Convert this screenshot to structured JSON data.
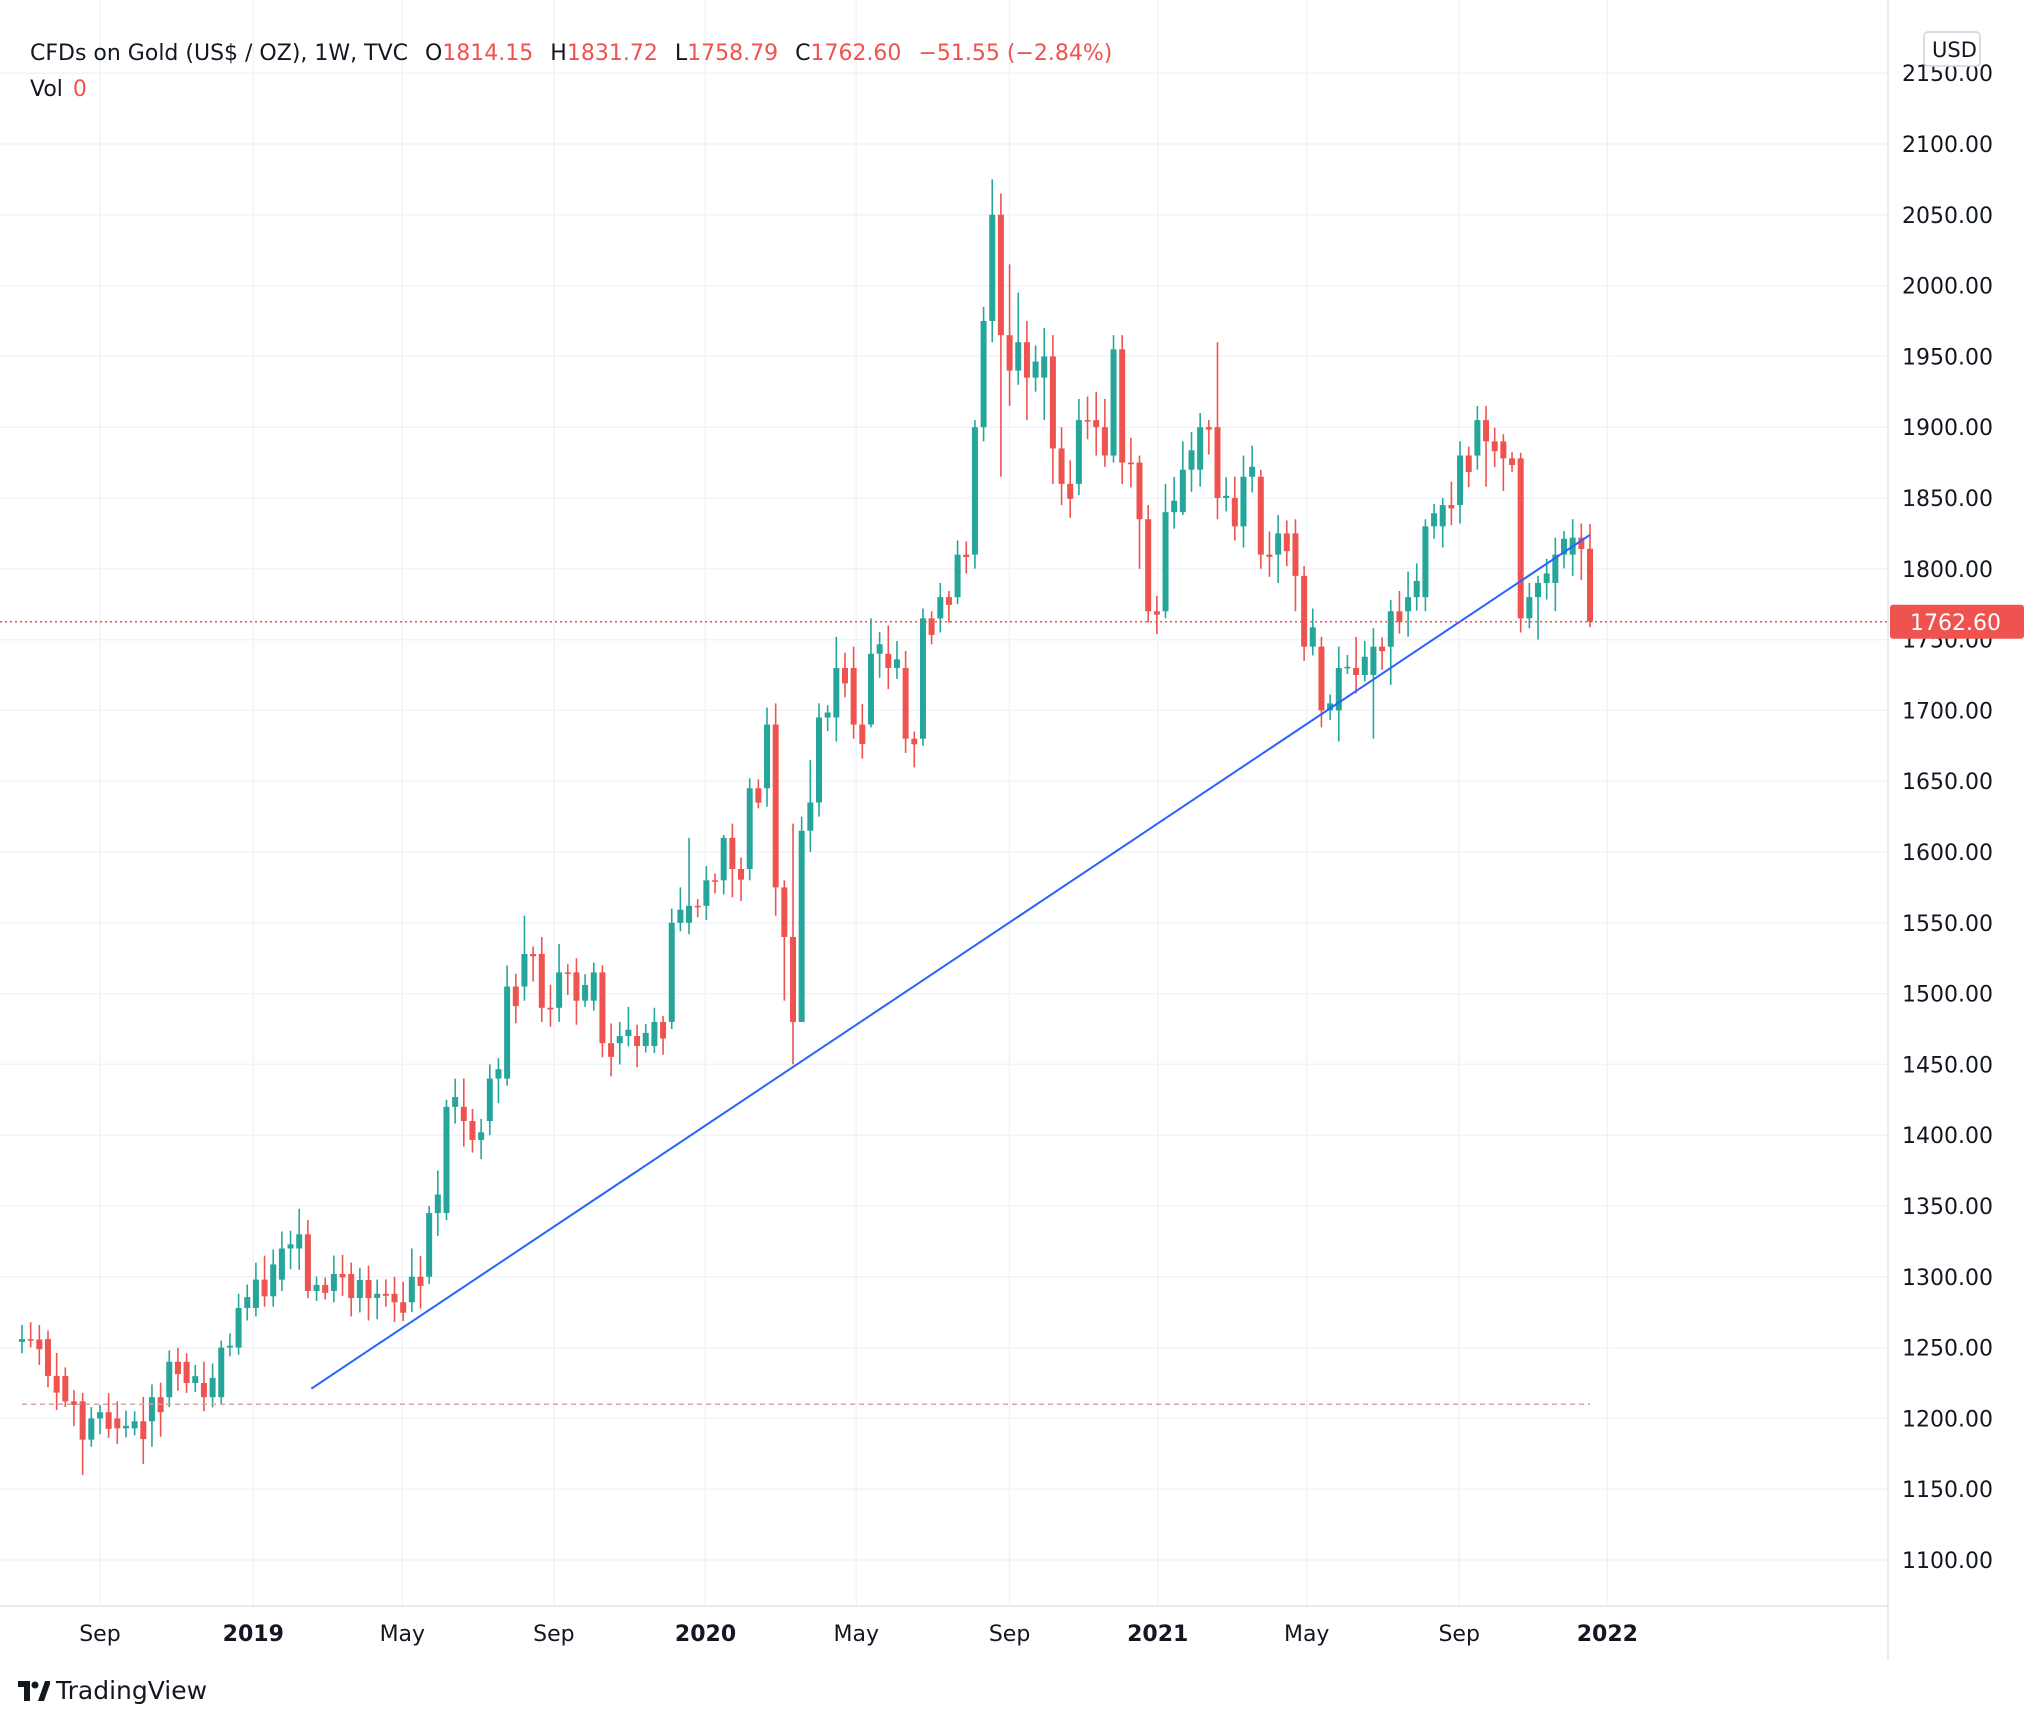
{
  "legend": {
    "symbol": "CFDs on Gold (US$ / OZ), 1W, TVC",
    "open_label": "O",
    "open": "1814.15",
    "high_label": "H",
    "high": "1831.72",
    "low_label": "L",
    "low": "1758.79",
    "close_label": "C",
    "close": "1762.60",
    "change": "−51.55 (−2.84%)",
    "vol_label": "Vol",
    "vol": "0"
  },
  "currency": "USD",
  "brand": "TradingView",
  "colors": {
    "up": "#26a69a",
    "down": "#ef5350",
    "trendline": "#2962ff",
    "grid": "#f0f3fa"
  },
  "chart_data": {
    "type": "candlestick",
    "title": "CFDs on Gold (US$ / OZ), 1W, TVC",
    "y_axis": {
      "min": 1070,
      "max": 2170,
      "ticks": [
        1100,
        1150,
        1200,
        1250,
        1300,
        1350,
        1400,
        1450,
        1500,
        1550,
        1600,
        1650,
        1700,
        1750,
        1800,
        1850,
        1900,
        1950,
        2000,
        2050,
        2100,
        2150
      ],
      "tick_labels": [
        "1100.00",
        "1150.00",
        "1200.00",
        "1250.00",
        "1300.00",
        "1350.00",
        "1400.00",
        "1450.00",
        "1500.00",
        "1550.00",
        "1600.00",
        "1650.00",
        "1700.00",
        "1750.00",
        "1800.00",
        "1850.00",
        "1900.00",
        "1950.00",
        "2000.00",
        "2050.00",
        "2100.00",
        "2150.00"
      ]
    },
    "x_axis": {
      "start_week": -8,
      "end_week": 181,
      "labels": [
        {
          "text": "Sep",
          "week": 1,
          "bold": false
        },
        {
          "text": "2019",
          "week": 18.7,
          "bold": true
        },
        {
          "text": "May",
          "week": 35.9,
          "bold": false
        },
        {
          "text": "Sep",
          "week": 53.4,
          "bold": false
        },
        {
          "text": "2020",
          "week": 70.9,
          "bold": true
        },
        {
          "text": "May",
          "week": 88.3,
          "bold": false
        },
        {
          "text": "Sep",
          "week": 106,
          "bold": false
        },
        {
          "text": "2021",
          "week": 123.1,
          "bold": true
        },
        {
          "text": "May",
          "week": 140.3,
          "bold": false
        },
        {
          "text": "Sep",
          "week": 157.9,
          "bold": false
        },
        {
          "text": "2022",
          "week": 175,
          "bold": true
        }
      ]
    },
    "last_price": 1762.6,
    "last_price_label": "1762.60",
    "reference_level": 1210,
    "trendline": {
      "from": {
        "week": 25.4,
        "price": 1221
      },
      "to": {
        "week": 173,
        "price": 1824
      }
    },
    "waypoints": [
      [
        -8,
        1254,
        1256,
        1266,
        1246
      ],
      [
        -5,
        1256,
        1230,
        1262,
        1222
      ],
      [
        -3,
        1230,
        1212,
        1236,
        1208
      ],
      [
        -1,
        1212,
        1185,
        1218,
        1160
      ],
      [
        0,
        1185,
        1200,
        1208,
        1180
      ],
      [
        3,
        1200,
        1193,
        1212,
        1182
      ],
      [
        5,
        1193,
        1198,
        1205,
        1188
      ],
      [
        7,
        1198,
        1215,
        1224,
        1180
      ],
      [
        9,
        1215,
        1240,
        1248,
        1208
      ],
      [
        11,
        1240,
        1225,
        1246,
        1218
      ],
      [
        13,
        1225,
        1215,
        1240,
        1205
      ],
      [
        15,
        1215,
        1250,
        1255,
        1210
      ],
      [
        17,
        1250,
        1278,
        1288,
        1245
      ],
      [
        19,
        1278,
        1298,
        1310,
        1272
      ],
      [
        22,
        1298,
        1320,
        1332,
        1290
      ],
      [
        24,
        1320,
        1330,
        1348,
        1305
      ],
      [
        25,
        1330,
        1290,
        1340,
        1285
      ],
      [
        28,
        1290,
        1302,
        1315,
        1282
      ],
      [
        30,
        1302,
        1285,
        1310,
        1272
      ],
      [
        33,
        1285,
        1288,
        1298,
        1270
      ],
      [
        35,
        1288,
        1282,
        1300,
        1268
      ],
      [
        37,
        1282,
        1300,
        1320,
        1275
      ],
      [
        39,
        1300,
        1345,
        1350,
        1295
      ],
      [
        41,
        1345,
        1420,
        1425,
        1340
      ],
      [
        43,
        1420,
        1410,
        1440,
        1392
      ],
      [
        46,
        1410,
        1440,
        1450,
        1400
      ],
      [
        48,
        1440,
        1505,
        1520,
        1435
      ],
      [
        50,
        1505,
        1528,
        1555,
        1495
      ],
      [
        52,
        1528,
        1490,
        1540,
        1480
      ],
      [
        54,
        1490,
        1515,
        1535,
        1480
      ],
      [
        56,
        1515,
        1495,
        1525,
        1478
      ],
      [
        58,
        1495,
        1515,
        1522,
        1488
      ],
      [
        59,
        1515,
        1465,
        1520,
        1455
      ],
      [
        61,
        1465,
        1470,
        1480,
        1450
      ],
      [
        63,
        1470,
        1463,
        1478,
        1448
      ],
      [
        65,
        1463,
        1480,
        1490,
        1458
      ],
      [
        67,
        1480,
        1550,
        1560,
        1475
      ],
      [
        69,
        1550,
        1562,
        1610,
        1542
      ],
      [
        71,
        1562,
        1580,
        1590,
        1552
      ],
      [
        73,
        1580,
        1610,
        1612,
        1570
      ],
      [
        74,
        1610,
        1588,
        1620,
        1568
      ],
      [
        76,
        1588,
        1645,
        1652,
        1580
      ],
      [
        78,
        1645,
        1690,
        1702,
        1632
      ],
      [
        79,
        1690,
        1575,
        1705,
        1555
      ],
      [
        80,
        1575,
        1540,
        1580,
        1495
      ],
      [
        81,
        1540,
        1480,
        1620,
        1450
      ],
      [
        82,
        1480,
        1615,
        1625,
        1480
      ],
      [
        83,
        1615,
        1635,
        1665,
        1600
      ],
      [
        84,
        1635,
        1695,
        1705,
        1625
      ],
      [
        86,
        1695,
        1730,
        1752,
        1678
      ],
      [
        88,
        1730,
        1690,
        1745,
        1680
      ],
      [
        90,
        1690,
        1740,
        1765,
        1688
      ],
      [
        92,
        1740,
        1730,
        1760,
        1715
      ],
      [
        94,
        1730,
        1680,
        1742,
        1670
      ],
      [
        96,
        1680,
        1765,
        1772,
        1675
      ],
      [
        98,
        1765,
        1780,
        1790,
        1755
      ],
      [
        100,
        1780,
        1810,
        1820,
        1775
      ],
      [
        102,
        1810,
        1900,
        1905,
        1800
      ],
      [
        103,
        1900,
        1975,
        1985,
        1890
      ],
      [
        104,
        1975,
        2050,
        2075,
        1960
      ],
      [
        105,
        2050,
        1965,
        2065,
        1865
      ],
      [
        106,
        1965,
        1940,
        2015,
        1915
      ],
      [
        107,
        1940,
        1960,
        1995,
        1930
      ],
      [
        108,
        1960,
        1935,
        1975,
        1905
      ],
      [
        110,
        1935,
        1950,
        1970,
        1905
      ],
      [
        111,
        1950,
        1885,
        1965,
        1860
      ],
      [
        112,
        1885,
        1860,
        1900,
        1845
      ],
      [
        114,
        1860,
        1905,
        1920,
        1852
      ],
      [
        116,
        1905,
        1900,
        1925,
        1880
      ],
      [
        117,
        1900,
        1880,
        1920,
        1872
      ],
      [
        118,
        1880,
        1955,
        1965,
        1875
      ],
      [
        119,
        1955,
        1875,
        1965,
        1860
      ],
      [
        121,
        1875,
        1835,
        1880,
        1800
      ],
      [
        122,
        1835,
        1770,
        1845,
        1762
      ],
      [
        124,
        1770,
        1840,
        1860,
        1765
      ],
      [
        126,
        1840,
        1870,
        1890,
        1838
      ],
      [
        128,
        1870,
        1900,
        1910,
        1858
      ],
      [
        130,
        1900,
        1850,
        1960,
        1835
      ],
      [
        132,
        1850,
        1830,
        1865,
        1820
      ],
      [
        133,
        1830,
        1865,
        1880,
        1815
      ],
      [
        135,
        1865,
        1810,
        1870,
        1800
      ],
      [
        137,
        1810,
        1825,
        1838,
        1790
      ],
      [
        139,
        1825,
        1795,
        1835,
        1770
      ],
      [
        140,
        1795,
        1745,
        1802,
        1735
      ],
      [
        142,
        1745,
        1700,
        1752,
        1688
      ],
      [
        144,
        1700,
        1730,
        1745,
        1678
      ],
      [
        146,
        1730,
        1725,
        1752,
        1712
      ],
      [
        148,
        1725,
        1745,
        1758,
        1680
      ],
      [
        150,
        1745,
        1770,
        1778,
        1718
      ],
      [
        152,
        1770,
        1780,
        1798,
        1752
      ],
      [
        154,
        1780,
        1830,
        1835,
        1770
      ],
      [
        156,
        1830,
        1845,
        1850,
        1815
      ],
      [
        158,
        1845,
        1880,
        1890,
        1832
      ],
      [
        160,
        1880,
        1905,
        1915,
        1870
      ],
      [
        161,
        1905,
        1890,
        1915,
        1858
      ],
      [
        163,
        1890,
        1878,
        1895,
        1855
      ],
      [
        165,
        1878,
        1765,
        1882,
        1755
      ],
      [
        166,
        1765,
        1780,
        1790,
        1758
      ],
      [
        167,
        1780,
        1790,
        1795,
        1750
      ],
      [
        169,
        1790,
        1810,
        1822,
        1770
      ],
      [
        171,
        1810,
        1822,
        1835,
        1795
      ],
      [
        172,
        1822,
        1814,
        1832,
        1792
      ],
      [
        173,
        1814.15,
        1762.6,
        1831.72,
        1758.79
      ]
    ]
  }
}
